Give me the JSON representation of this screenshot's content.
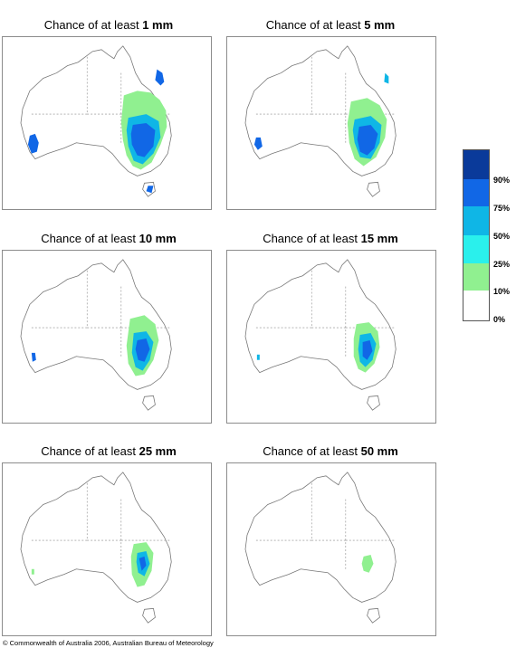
{
  "panels": [
    {
      "title_prefix": "Chance of at least",
      "amount": "1 mm"
    },
    {
      "title_prefix": "Chance of at least",
      "amount": "5 mm"
    },
    {
      "title_prefix": "Chance of at least",
      "amount": "10 mm"
    },
    {
      "title_prefix": "Chance of at least",
      "amount": "15 mm"
    },
    {
      "title_prefix": "Chance of at least",
      "amount": "25 mm"
    },
    {
      "title_prefix": "Chance of at least",
      "amount": "50 mm"
    }
  ],
  "legend": {
    "labels": [
      "90%",
      "75%",
      "50%",
      "25%",
      "10%",
      "0%"
    ],
    "colors": [
      "#0a3a9a",
      "#1167e6",
      "#0fb6e6",
      "#2af0ec",
      "#90f090",
      "#ffffff"
    ]
  },
  "footer": {
    "copyright": "© Commonwealth of Australia 2006, Australian Bureau of Meteorology"
  }
}
